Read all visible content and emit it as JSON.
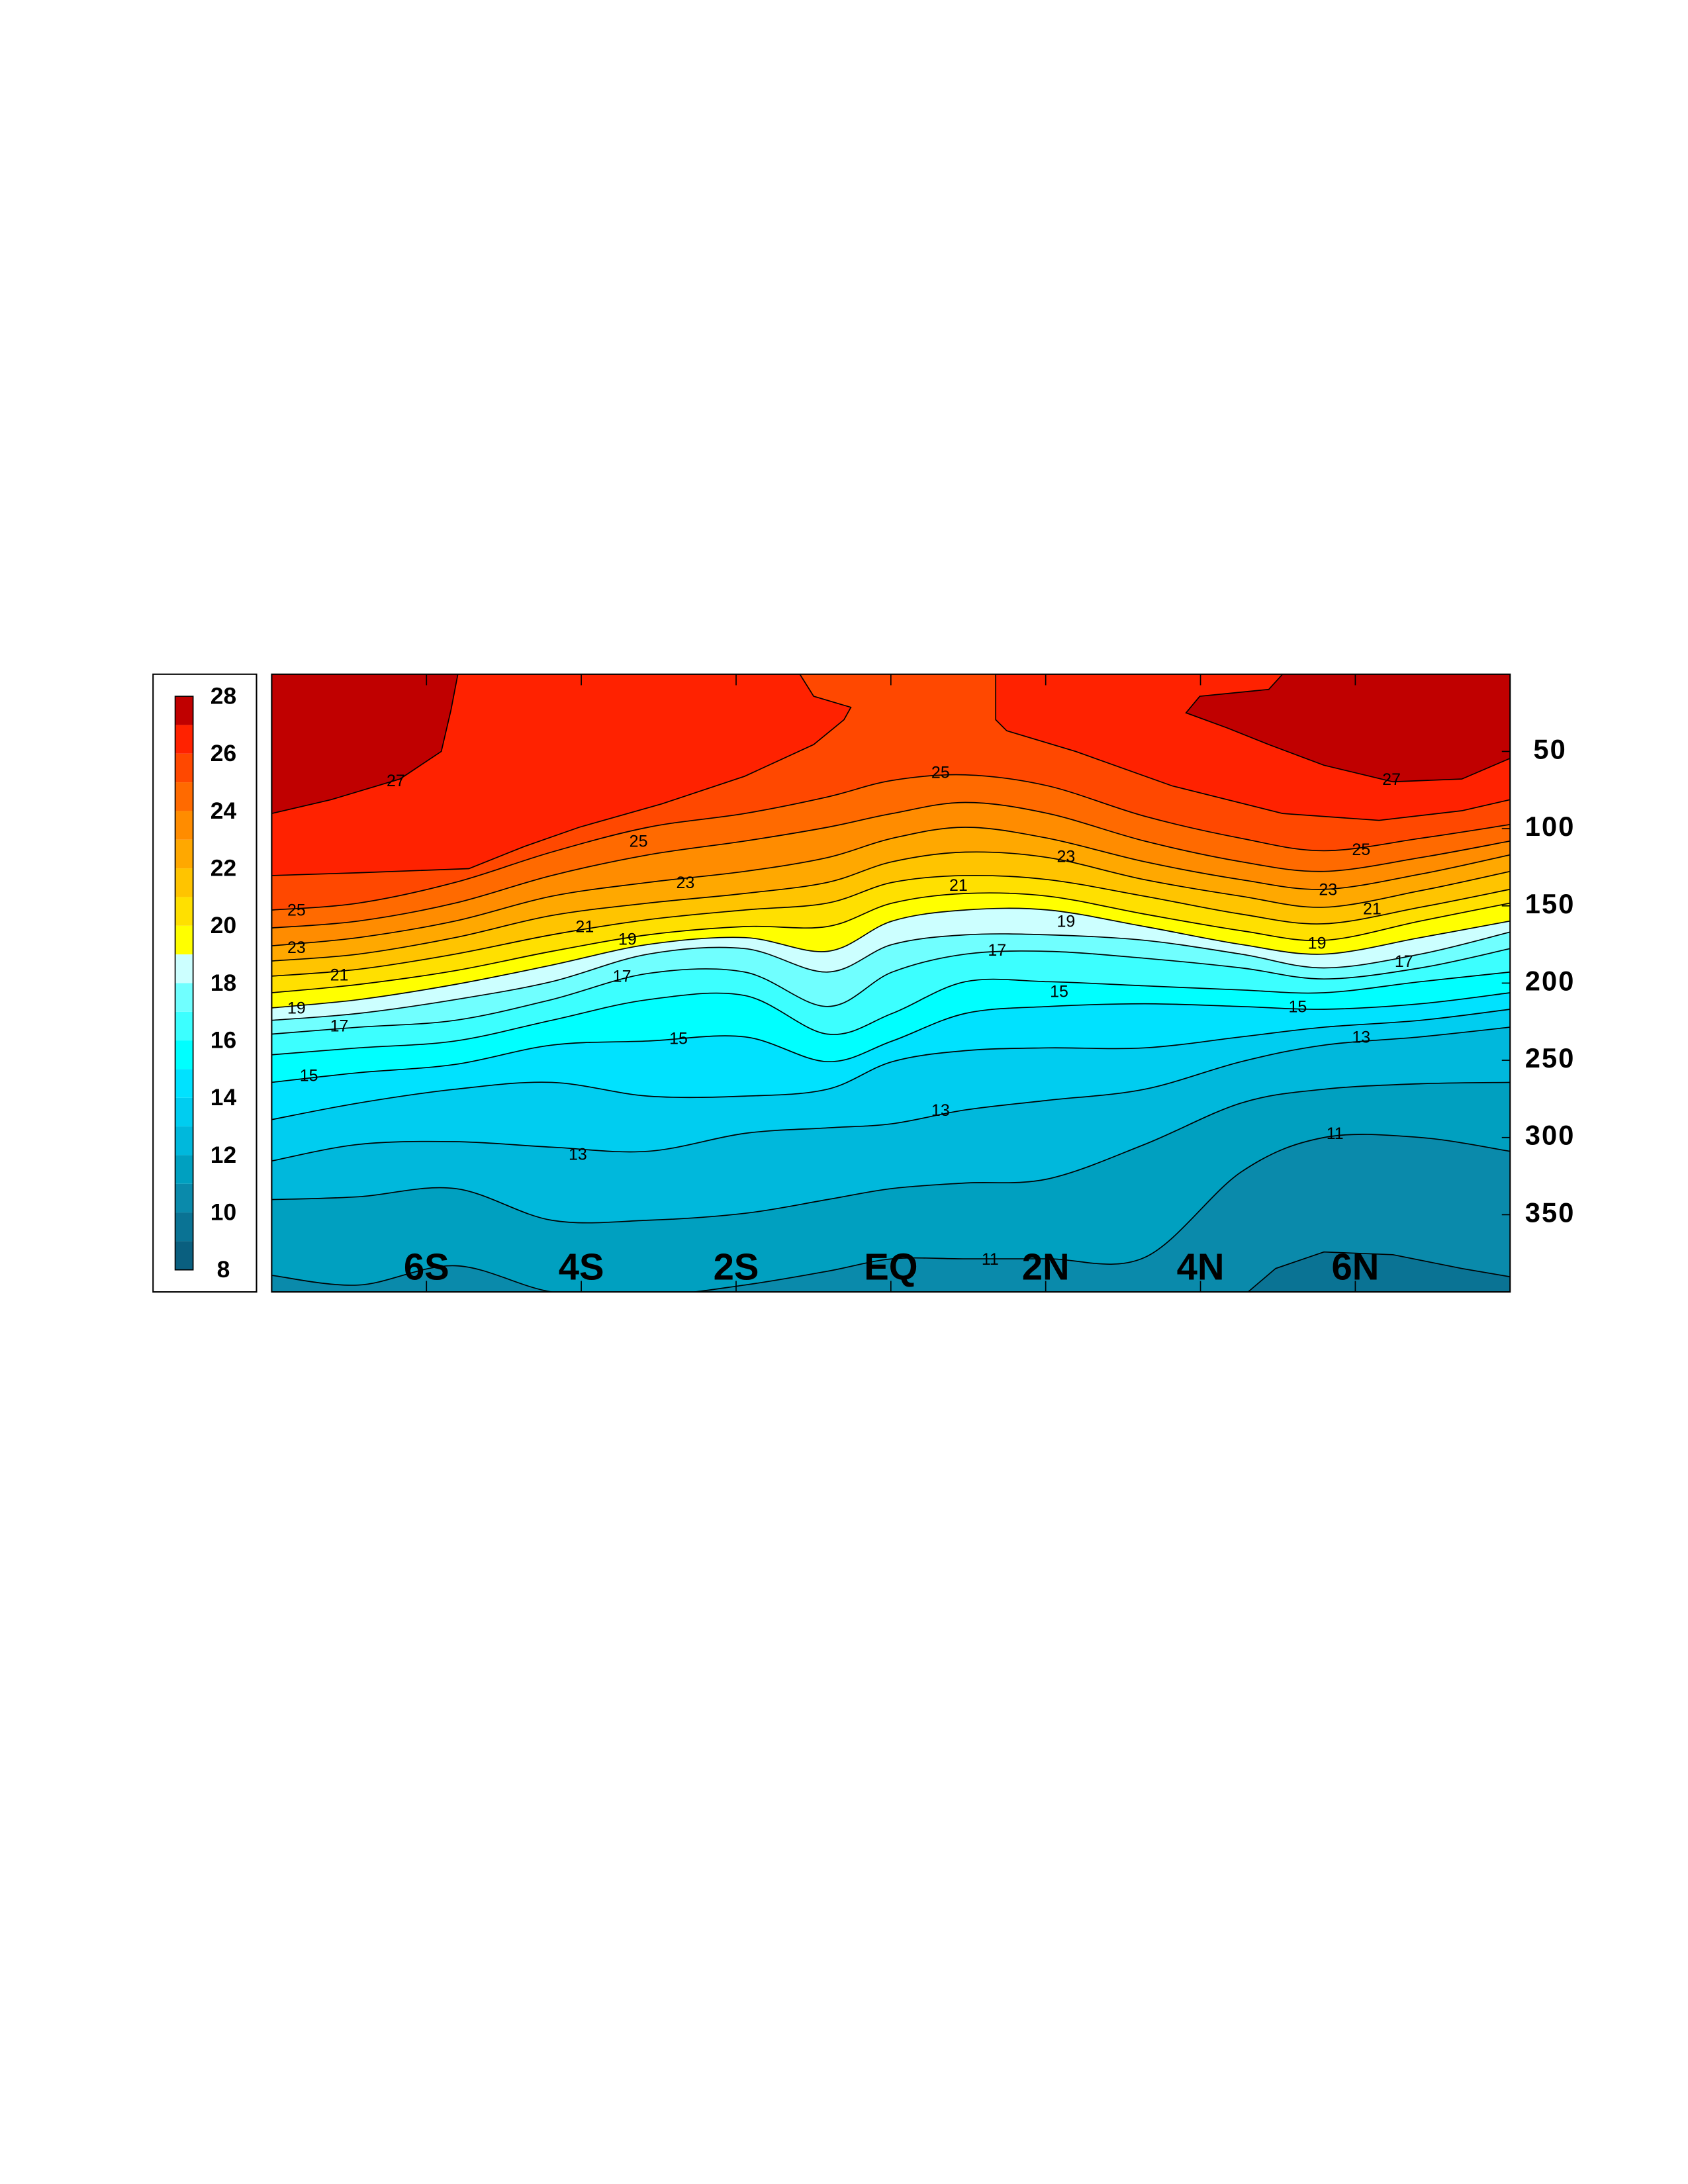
{
  "chart_data": {
    "type": "contour",
    "levels": [
      8,
      9,
      10,
      11,
      12,
      13,
      14,
      15,
      16,
      17,
      18,
      19,
      20,
      21,
      22,
      23,
      24,
      25,
      26,
      27,
      28
    ],
    "colors": [
      "#0a5f7f",
      "#0a7394",
      "#0a8aab",
      "#00a0c0",
      "#00b8dc",
      "#00cdf0",
      "#00e2ff",
      "#00ffff",
      "#3cffff",
      "#70ffff",
      "#ccffff",
      "#ffff00",
      "#ffe000",
      "#ffc400",
      "#ffa800",
      "#ff8c00",
      "#ff6a00",
      "#ff4800",
      "#ff2200",
      "#c00000",
      "#7a0000"
    ],
    "xlim": [
      -8,
      8
    ],
    "xticks": [
      {
        "value": -6,
        "label": "6S"
      },
      {
        "value": -4,
        "label": "4S"
      },
      {
        "value": -2,
        "label": "2S"
      },
      {
        "value": 0,
        "label": "EQ"
      },
      {
        "value": 2,
        "label": "2N"
      },
      {
        "value": 4,
        "label": "4N"
      },
      {
        "value": 6,
        "label": "6N"
      }
    ],
    "ylim": [
      0,
      400
    ],
    "yticks": [
      50,
      100,
      150,
      200,
      250,
      300,
      350
    ],
    "y_reversed": true
  }
}
